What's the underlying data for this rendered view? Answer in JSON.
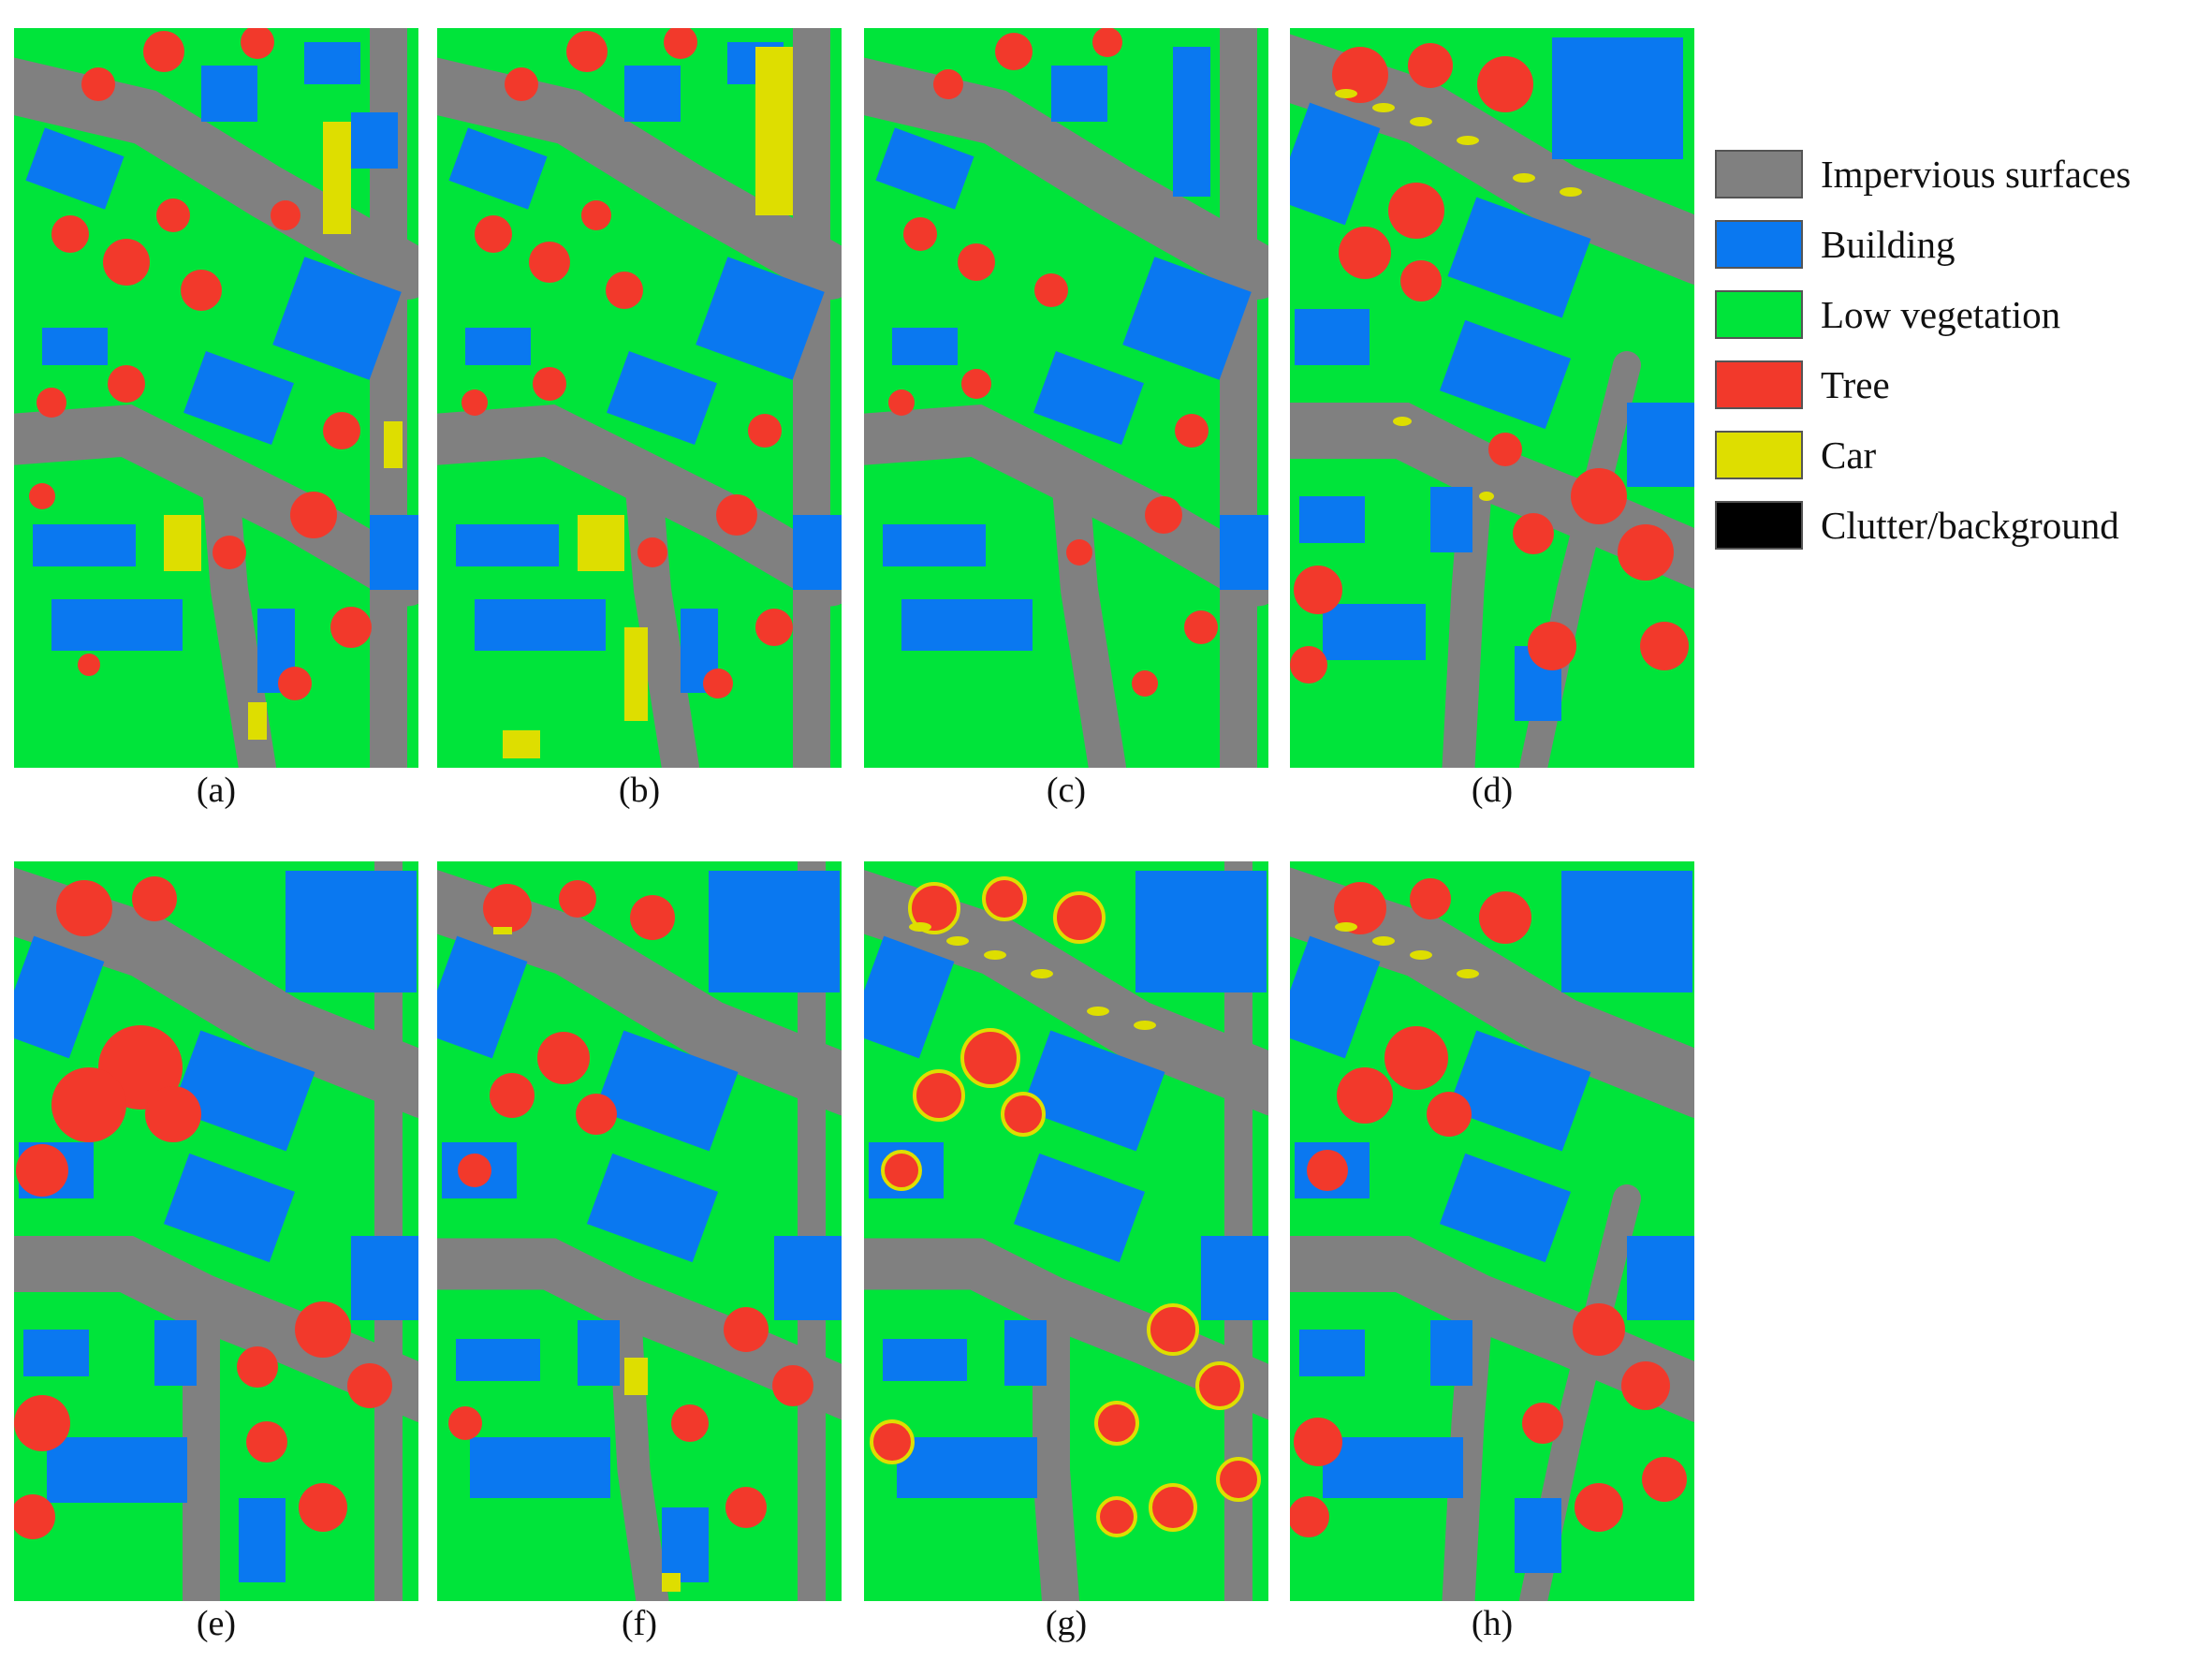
{
  "figure": {
    "panels": [
      {
        "id": "a",
        "caption": "(a)"
      },
      {
        "id": "b",
        "caption": "(b)"
      },
      {
        "id": "c",
        "caption": "(c)"
      },
      {
        "id": "d",
        "caption": "(d)"
      },
      {
        "id": "e",
        "caption": "(e)"
      },
      {
        "id": "f",
        "caption": "(f)"
      },
      {
        "id": "g",
        "caption": "(g)"
      },
      {
        "id": "h",
        "caption": "(h)"
      }
    ]
  },
  "legend": {
    "items": [
      {
        "label": "Impervious surfaces",
        "color": "#808080"
      },
      {
        "label": "Building",
        "color": "#0a78f0"
      },
      {
        "label": "Low vegetation",
        "color": "#00e43a"
      },
      {
        "label": "Tree",
        "color": "#f2392b"
      },
      {
        "label": "Car",
        "color": "#dede00"
      },
      {
        "label": "Clutter/background",
        "color": "#000000"
      }
    ]
  },
  "colors": {
    "impervious": "#808080",
    "building": "#0a78f0",
    "low_vegetation": "#00e43a",
    "tree": "#f2392b",
    "car": "#dede00"
  }
}
